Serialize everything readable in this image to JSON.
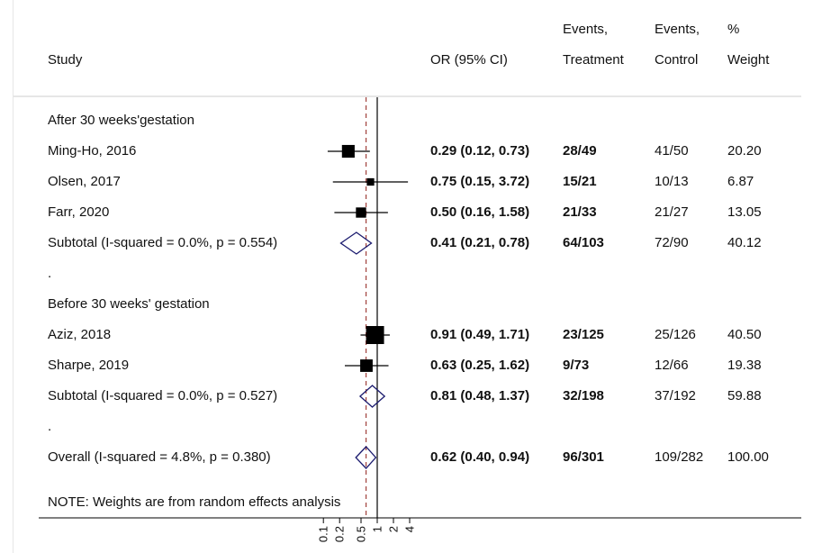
{
  "chart_data": {
    "type": "forest",
    "scale": "log",
    "x_ticks": [
      0.1,
      0.2,
      0.5,
      1,
      2,
      4
    ],
    "x_tick_labels": [
      "0.1",
      "0.2",
      "0.5",
      "1",
      "2",
      "4"
    ],
    "null_line": 1,
    "overall_line": 0.62,
    "columns": {
      "study": "Study",
      "or": "OR (95% CI)",
      "events_treatment": [
        "Events,",
        "Treatment"
      ],
      "events_control": [
        "Events,",
        "Control"
      ],
      "weight": [
        "%",
        "Weight"
      ]
    },
    "rows": [
      {
        "kind": "group",
        "label": "After 30 weeks'gestation"
      },
      {
        "kind": "study",
        "label": "Ming-Ho, 2016",
        "or": 0.29,
        "lo": 0.12,
        "hi": 0.73,
        "or_text": "0.29 (0.12, 0.73)",
        "ev_t": "28/49",
        "ev_c": "41/50",
        "weight": 20.2,
        "weight_text": "20.20"
      },
      {
        "kind": "study",
        "label": "Olsen, 2017",
        "or": 0.75,
        "lo": 0.15,
        "hi": 3.72,
        "or_text": "0.75 (0.15, 3.72)",
        "ev_t": "15/21",
        "ev_c": "10/13",
        "weight": 6.87,
        "weight_text": "6.87"
      },
      {
        "kind": "study",
        "label": "Farr, 2020",
        "or": 0.5,
        "lo": 0.16,
        "hi": 1.58,
        "or_text": "0.50 (0.16, 1.58)",
        "ev_t": "21/33",
        "ev_c": "21/27",
        "weight": 13.05,
        "weight_text": "13.05"
      },
      {
        "kind": "subtotal",
        "label": "Subtotal  (I-squared = 0.0%, p = 0.554)",
        "or": 0.41,
        "lo": 0.21,
        "hi": 0.78,
        "or_text": "0.41 (0.21, 0.78)",
        "ev_t": "64/103",
        "ev_c": "72/90",
        "weight": 40.12,
        "weight_text": "40.12"
      },
      {
        "kind": "spacer",
        "label": "."
      },
      {
        "kind": "group",
        "label": "Before 30 weeks' gestation"
      },
      {
        "kind": "study",
        "label": "Aziz, 2018",
        "or": 0.91,
        "lo": 0.49,
        "hi": 1.71,
        "or_text": "0.91 (0.49, 1.71)",
        "ev_t": "23/125",
        "ev_c": "25/126",
        "weight": 40.5,
        "weight_text": "40.50"
      },
      {
        "kind": "study",
        "label": "Sharpe, 2019",
        "or": 0.63,
        "lo": 0.25,
        "hi": 1.62,
        "or_text": "0.63 (0.25, 1.62)",
        "ev_t": "9/73",
        "ev_c": "12/66",
        "weight": 19.38,
        "weight_text": "19.38"
      },
      {
        "kind": "subtotal",
        "label": "Subtotal  (I-squared = 0.0%, p = 0.527)",
        "or": 0.81,
        "lo": 0.48,
        "hi": 1.37,
        "or_text": "0.81 (0.48, 1.37)",
        "ev_t": "32/198",
        "ev_c": "37/192",
        "weight": 59.88,
        "weight_text": "59.88"
      },
      {
        "kind": "spacer",
        "label": "."
      },
      {
        "kind": "overall",
        "label": "Overall  (I-squared = 4.8%, p = 0.380)",
        "or": 0.62,
        "lo": 0.4,
        "hi": 0.94,
        "or_text": "0.62 (0.40, 0.94)",
        "ev_t": "96/301",
        "ev_c": "109/282",
        "weight": 100.0,
        "weight_text": "100.00"
      }
    ],
    "note": "NOTE: Weights are from random effects analysis",
    "colors": {
      "marker": "#000000",
      "diamond": "#1a1a6e",
      "overall_line": "#a0403c",
      "axis": "#000000",
      "separator": "#cccccc"
    }
  }
}
